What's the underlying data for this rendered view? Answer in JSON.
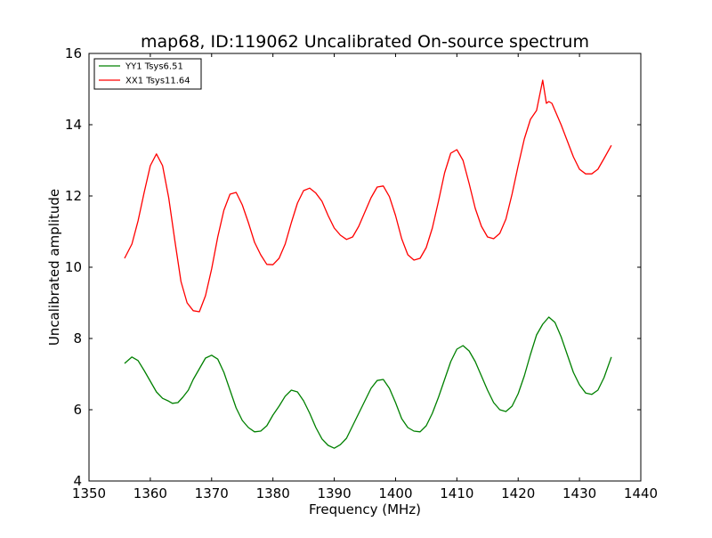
{
  "chart_data": {
    "type": "line",
    "title": "map68, ID:119062 Uncalibrated On-source spectrum",
    "xlabel": "Frequency (MHz)",
    "ylabel": "Uncalibrated amplitude",
    "xlim": [
      1350,
      1440
    ],
    "ylim": [
      4,
      16
    ],
    "xticks": [
      1350,
      1360,
      1370,
      1380,
      1390,
      1400,
      1410,
      1420,
      1430,
      1440
    ],
    "yticks": [
      4,
      6,
      8,
      10,
      12,
      14,
      16
    ],
    "xtick_labels": [
      "1350",
      "1360",
      "1370",
      "1380",
      "1390",
      "1400",
      "1410",
      "1420",
      "1430",
      "1440"
    ],
    "ytick_labels": [
      "4",
      "6",
      "8",
      "10",
      "12",
      "14",
      "16"
    ],
    "grid": false,
    "legend_position": "top-left",
    "series": [
      {
        "name": "YY1 Tsys6.51",
        "color": "#008000",
        "x": [
          1355.8,
          1357.0,
          1358.0,
          1359.0,
          1360.0,
          1361.0,
          1362.0,
          1363.0,
          1363.6,
          1364.5,
          1365.3,
          1366.2,
          1367.0,
          1368.0,
          1369.0,
          1370.0,
          1371.0,
          1372.0,
          1373.0,
          1374.0,
          1375.0,
          1376.0,
          1377.0,
          1378.0,
          1379.0,
          1380.0,
          1381.0,
          1382.0,
          1383.0,
          1384.0,
          1385.0,
          1386.0,
          1387.0,
          1388.0,
          1389.0,
          1390.0,
          1391.0,
          1392.0,
          1393.0,
          1394.0,
          1395.0,
          1396.0,
          1397.0,
          1398.0,
          1399.0,
          1400.0,
          1401.0,
          1402.0,
          1403.0,
          1404.0,
          1405.0,
          1406.0,
          1407.0,
          1408.0,
          1409.0,
          1410.0,
          1411.0,
          1412.0,
          1413.0,
          1414.0,
          1415.0,
          1416.0,
          1417.0,
          1418.0,
          1419.0,
          1420.0,
          1421.0,
          1422.0,
          1423.0,
          1424.0,
          1425.0,
          1426.0,
          1427.0,
          1428.0,
          1429.0,
          1430.0,
          1431.0,
          1432.0,
          1433.0,
          1434.0,
          1435.2
        ],
        "values": [
          7.3,
          7.48,
          7.38,
          7.1,
          6.8,
          6.5,
          6.32,
          6.24,
          6.18,
          6.2,
          6.35,
          6.55,
          6.85,
          7.15,
          7.45,
          7.53,
          7.42,
          7.05,
          6.55,
          6.05,
          5.7,
          5.5,
          5.38,
          5.4,
          5.55,
          5.85,
          6.1,
          6.38,
          6.55,
          6.5,
          6.25,
          5.9,
          5.5,
          5.18,
          5.0,
          4.92,
          5.02,
          5.2,
          5.55,
          5.9,
          6.25,
          6.6,
          6.82,
          6.85,
          6.6,
          6.2,
          5.75,
          5.5,
          5.4,
          5.38,
          5.55,
          5.9,
          6.35,
          6.85,
          7.35,
          7.7,
          7.8,
          7.65,
          7.35,
          6.95,
          6.55,
          6.2,
          6.0,
          5.95,
          6.1,
          6.45,
          6.95,
          7.55,
          8.1,
          8.4,
          8.6,
          8.45,
          8.05,
          7.55,
          7.05,
          6.7,
          6.47,
          6.43,
          6.55,
          6.9,
          7.48
        ]
      },
      {
        "name": "XX1 Tsys11.64",
        "color": "#ff0000",
        "x": [
          1355.8,
          1357.0,
          1358.0,
          1359.0,
          1360.0,
          1361.0,
          1362.0,
          1363.0,
          1364.0,
          1365.0,
          1366.0,
          1367.0,
          1368.0,
          1369.0,
          1370.0,
          1371.0,
          1372.0,
          1373.0,
          1374.0,
          1375.0,
          1376.0,
          1377.0,
          1378.0,
          1379.0,
          1380.0,
          1381.0,
          1382.0,
          1383.0,
          1384.0,
          1385.0,
          1386.0,
          1387.0,
          1388.0,
          1389.0,
          1390.0,
          1391.0,
          1392.0,
          1393.0,
          1394.0,
          1395.0,
          1396.0,
          1397.0,
          1398.0,
          1399.0,
          1400.0,
          1401.0,
          1402.0,
          1403.0,
          1404.0,
          1405.0,
          1406.0,
          1407.0,
          1408.0,
          1409.0,
          1410.0,
          1411.0,
          1412.0,
          1413.0,
          1414.0,
          1415.0,
          1416.0,
          1417.0,
          1418.0,
          1419.0,
          1420.0,
          1421.0,
          1422.0,
          1423.0,
          1424.0,
          1424.6,
          1425.0,
          1425.5,
          1426.0,
          1427.0,
          1428.0,
          1429.0,
          1430.0,
          1431.0,
          1432.0,
          1433.0,
          1434.0,
          1435.2
        ],
        "values": [
          10.25,
          10.65,
          11.3,
          12.1,
          12.85,
          13.18,
          12.85,
          11.95,
          10.75,
          9.6,
          9.0,
          8.78,
          8.75,
          9.2,
          9.95,
          10.85,
          11.6,
          12.05,
          12.1,
          11.75,
          11.25,
          10.7,
          10.35,
          10.08,
          10.07,
          10.25,
          10.65,
          11.25,
          11.8,
          12.15,
          12.22,
          12.08,
          11.85,
          11.45,
          11.1,
          10.9,
          10.78,
          10.85,
          11.15,
          11.55,
          11.95,
          12.25,
          12.28,
          11.98,
          11.45,
          10.8,
          10.35,
          10.2,
          10.25,
          10.55,
          11.1,
          11.85,
          12.65,
          13.2,
          13.3,
          13.0,
          12.35,
          11.65,
          11.15,
          10.85,
          10.8,
          10.95,
          11.35,
          12.05,
          12.85,
          13.6,
          14.15,
          14.4,
          15.25,
          14.6,
          14.65,
          14.6,
          14.4,
          14.0,
          13.55,
          13.1,
          12.75,
          12.62,
          12.62,
          12.75,
          13.05,
          13.42
        ]
      }
    ]
  }
}
